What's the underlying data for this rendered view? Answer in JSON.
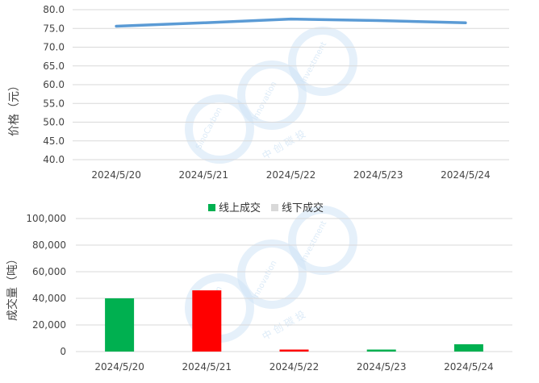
{
  "chart_data": [
    {
      "type": "line",
      "title": "",
      "xlabel": "",
      "ylabel": "价格（元）",
      "categories": [
        "2024/5/20",
        "2024/5/21",
        "2024/5/22",
        "2024/5/23",
        "2024/5/24"
      ],
      "series": [
        {
          "values": [
            75.6,
            76.5,
            77.5,
            77.1,
            76.5
          ],
          "color": "#5b9bd5"
        }
      ],
      "ylim": [
        40,
        80
      ],
      "ytick_step": 5,
      "ytick_labels": [
        "40.0",
        "45.0",
        "50.0",
        "55.0",
        "60.0",
        "65.0",
        "70.0",
        "75.0",
        "80.0"
      ],
      "grid": true,
      "legend": "none"
    },
    {
      "type": "bar",
      "title": "",
      "xlabel": "",
      "ylabel": "成交量（吨）",
      "categories": [
        "2024/5/20",
        "2024/5/21",
        "2024/5/22",
        "2024/5/23",
        "2024/5/24"
      ],
      "values": [
        40000,
        46000,
        1500,
        1500,
        5500
      ],
      "bar_colors": [
        "#00b050",
        "#ff0000",
        "#ff0000",
        "#00b050",
        "#00b050"
      ],
      "legend_entries": [
        {
          "label": "线上成交",
          "color": "#00b050"
        },
        {
          "label": "线下成交",
          "color": "#d9d9d9"
        }
      ],
      "ylim": [
        0,
        100000
      ],
      "ytick_step": 20000,
      "ytick_labels": [
        "0",
        "20,000",
        "40,000",
        "60,000",
        "80,000",
        "100,000"
      ],
      "grid": true,
      "legend": "top-center"
    }
  ],
  "watermark": {
    "line1": "SinoCarbon",
    "line2": "Innovation",
    "line3": "Investment",
    "chinese": "中 创 碳 投"
  }
}
